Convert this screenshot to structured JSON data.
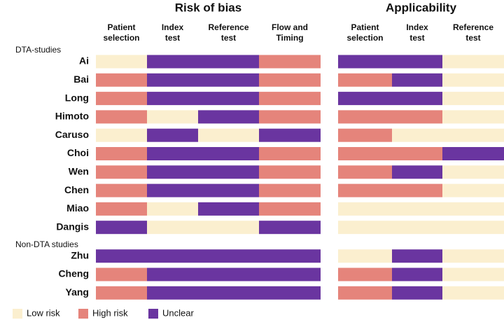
{
  "groups": [
    {
      "title": "Risk of bias",
      "columns": [
        [
          "Patient",
          "selection"
        ],
        [
          "Index",
          "test"
        ],
        [
          "Reference",
          "test"
        ],
        [
          "Flow and",
          "Timing"
        ]
      ]
    },
    {
      "title": "Applicability",
      "columns": [
        [
          "Patient",
          "selection"
        ],
        [
          "Index",
          "test"
        ],
        [
          "Reference",
          "test"
        ]
      ]
    }
  ],
  "legend": [
    {
      "label": "Low risk",
      "color": "#fbefcf"
    },
    {
      "label": "High risk",
      "color": "#e5847b"
    },
    {
      "label": "Unclear",
      "color": "#6a35a0"
    }
  ],
  "sections": [
    {
      "label": "DTA-studies",
      "studies": [
        {
          "name": "Ai",
          "ratings": [
            [
              "Low risk",
              "Unclear",
              "Unclear",
              "High risk"
            ],
            [
              "Unclear",
              "Unclear",
              "Low risk"
            ]
          ]
        },
        {
          "name": "Bai",
          "ratings": [
            [
              "High risk",
              "Unclear",
              "Unclear",
              "High risk"
            ],
            [
              "High risk",
              "Unclear",
              "Low risk"
            ]
          ]
        },
        {
          "name": "Long",
          "ratings": [
            [
              "High risk",
              "Unclear",
              "Unclear",
              "High risk"
            ],
            [
              "Unclear",
              "Unclear",
              "Low risk"
            ]
          ]
        },
        {
          "name": "Himoto",
          "ratings": [
            [
              "High risk",
              "Low risk",
              "Unclear",
              "High risk"
            ],
            [
              "High risk",
              "High risk",
              "Low risk"
            ]
          ]
        },
        {
          "name": "Caruso",
          "ratings": [
            [
              "Low risk",
              "Unclear",
              "Low risk",
              "Unclear"
            ],
            [
              "High risk",
              "Low risk",
              "Low risk"
            ]
          ]
        },
        {
          "name": "Choi",
          "ratings": [
            [
              "High risk",
              "Unclear",
              "Unclear",
              "High risk"
            ],
            [
              "High risk",
              "High risk",
              "Unclear"
            ]
          ]
        },
        {
          "name": "Wen",
          "ratings": [
            [
              "High risk",
              "Unclear",
              "Unclear",
              "High risk"
            ],
            [
              "High risk",
              "Unclear",
              "Low risk"
            ]
          ]
        },
        {
          "name": "Chen",
          "ratings": [
            [
              "High risk",
              "Unclear",
              "Unclear",
              "High risk"
            ],
            [
              "High risk",
              "High risk",
              "Low risk"
            ]
          ]
        },
        {
          "name": "Miao",
          "ratings": [
            [
              "High risk",
              "Low risk",
              "Unclear",
              "High risk"
            ],
            [
              "Low risk",
              "Low risk",
              "Low risk"
            ]
          ]
        },
        {
          "name": "Dangis",
          "ratings": [
            [
              "Unclear",
              "Low risk",
              "Low risk",
              "Unclear"
            ],
            [
              "Low risk",
              "Low risk",
              "Low risk"
            ]
          ]
        }
      ]
    },
    {
      "label": "Non-DTA studies",
      "studies": [
        {
          "name": "Zhu",
          "ratings": [
            [
              "Unclear",
              "Unclear",
              "Unclear",
              "Unclear"
            ],
            [
              "Low risk",
              "Unclear",
              "Low risk"
            ]
          ]
        },
        {
          "name": "Cheng",
          "ratings": [
            [
              "High risk",
              "Unclear",
              "Unclear",
              "Unclear"
            ],
            [
              "High risk",
              "Unclear",
              "Low risk"
            ]
          ]
        },
        {
          "name": "Yang",
          "ratings": [
            [
              "High risk",
              "Unclear",
              "Unclear",
              "Unclear"
            ],
            [
              "High risk",
              "Unclear",
              "Low risk"
            ]
          ]
        }
      ]
    }
  ]
}
